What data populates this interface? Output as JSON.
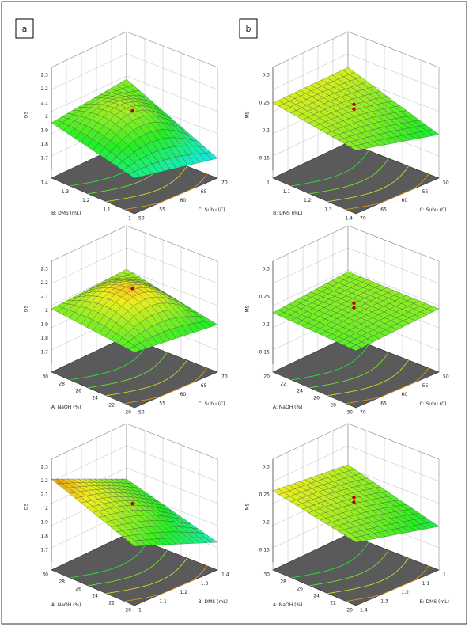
{
  "panels": [
    "a",
    "b"
  ],
  "plots": [
    {
      "z_label": "DS",
      "z_ticks": [
        "1.7",
        "1.8",
        "1.9",
        "2",
        "2.1",
        "2.2",
        "2.3"
      ],
      "left_label": "B: DMS (mL)",
      "left_ticks": [
        "1.4",
        "1.3",
        "1.2",
        "1.1",
        "1"
      ],
      "right_label": "C: Suhu (C)",
      "right_ticks": [
        "70",
        "65",
        "60",
        "55",
        "50"
      ]
    },
    {
      "z_label": "MS",
      "z_ticks": [
        "0.15",
        "0.2",
        "0.25",
        "0.3"
      ],
      "left_label": "B: DMS (mL)",
      "left_ticks": [
        "1",
        "1.1",
        "1.2",
        "1.3",
        "1.4"
      ],
      "right_label": "C: Suhu (C)",
      "right_ticks": [
        "50",
        "55",
        "60",
        "65",
        "70"
      ]
    },
    {
      "z_label": "DS",
      "z_ticks": [
        "1.7",
        "1.8",
        "1.9",
        "2",
        "2.1",
        "2.2",
        "2.3"
      ],
      "left_label": "A: NaOH (%)",
      "left_ticks": [
        "30",
        "28",
        "26",
        "24",
        "22",
        "20"
      ],
      "right_label": "C: Suhu (C)",
      "right_ticks": [
        "70",
        "65",
        "60",
        "55",
        "50"
      ]
    },
    {
      "z_label": "MS",
      "z_ticks": [
        "0.15",
        "0.2",
        "0.25",
        "0.3"
      ],
      "left_label": "A: NaOH (%)",
      "left_ticks": [
        "20",
        "22",
        "24",
        "26",
        "28",
        "30"
      ],
      "right_label": "C: Suhu (C)",
      "right_ticks": [
        "50",
        "55",
        "60",
        "65",
        "70"
      ]
    },
    {
      "z_label": "DS",
      "z_ticks": [
        "1.7",
        "1.8",
        "1.9",
        "2",
        "2.1",
        "2.2",
        "2.3"
      ],
      "left_label": "A: NaOH (%)",
      "left_ticks": [
        "30",
        "28",
        "26",
        "24",
        "22",
        "20"
      ],
      "right_label": "B: DMS (mL)",
      "right_ticks": [
        "1.4",
        "1.3",
        "1.2",
        "1.1",
        "1"
      ]
    },
    {
      "z_label": "MS",
      "z_ticks": [
        "0.15",
        "0.2",
        "0.25",
        "0.3"
      ],
      "left_label": "A: NaOH (%)",
      "left_ticks": [
        "30",
        "28",
        "26",
        "24",
        "22",
        "20"
      ],
      "right_label": "B: DMS (mL)",
      "right_ticks": [
        "1",
        "1.1",
        "1.2",
        "1.3",
        "1.4"
      ]
    }
  ]
}
